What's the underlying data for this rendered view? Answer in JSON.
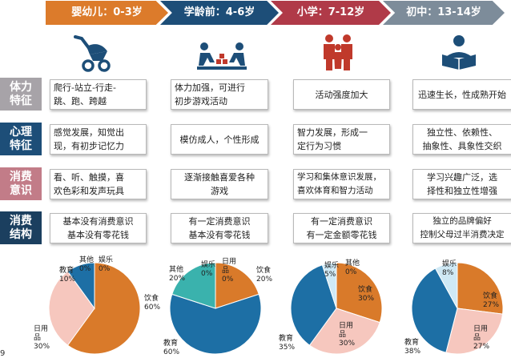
{
  "stages": [
    {
      "label": "婴幼儿：0-3岁",
      "color": "#dc7b2b",
      "icon": "stroller-icon"
    },
    {
      "label": "学龄前：4-6岁",
      "color": "#1d4e78",
      "icon": "kids-playing-blocks-icon"
    },
    {
      "label": "小学：7-12岁",
      "color": "#b03a48",
      "icon": "family-icon"
    },
    {
      "label": "初中：13-14岁",
      "color": "#7d8c9a",
      "icon": "student-reading-icon"
    }
  ],
  "rows": [
    {
      "label": "体力\n特征",
      "color": "#a7a3a8",
      "cells": [
        "爬行-站立-行走-\n跳、跑、跨越",
        "体力加强，可进行\n初步游戏活动",
        "活动强度加大",
        "迅速生长，性成熟开始"
      ]
    },
    {
      "label": "心理\n特征",
      "color": "#1d4e78",
      "cells": [
        "感觉发展，知觉出\n现，有初步记忆力",
        "模仿成人，个性形成",
        "智力发展，形成一\n定行为习惯",
        "独立性、依赖性、\n抽象性、具象性交织"
      ]
    },
    {
      "label": "消费\n意识",
      "color": "#c27c88",
      "cells": [
        "看、听、触摸，喜\n欢色彩和发声玩具",
        "逐渐接触喜爱各种\n游戏",
        "学习和集体意识发展，\n喜欢体育和智力活动",
        "学习兴趣广泛，选\n择性和独立性增强"
      ]
    },
    {
      "label": "消费\n结构",
      "color": "#1b3f5f",
      "cells": [
        "基本没有消费意识\n基本没有零花钱",
        "有一定消费意识\n基本没有零花钱",
        "有一定消费意识\n有一定金额零花钱",
        "独立的品牌偏好\n控制父母过半消费决定"
      ]
    }
  ],
  "pie_colors": {
    "饮食": "#d97a2a",
    "日用品": "#f6c7be",
    "教育": "#1d6fa5",
    "其他": "#3ab2ad",
    "娱乐": "#cfe9f5"
  },
  "chart_data": [
    {
      "type": "pie",
      "labels": [
        "饮食",
        "日用品",
        "教育",
        "其他",
        "娱乐"
      ],
      "values": [
        60,
        30,
        10,
        0,
        0
      ]
    },
    {
      "type": "pie",
      "labels": [
        "饮食",
        "教育",
        "其他",
        "娱乐",
        "日用品"
      ],
      "values": [
        20,
        60,
        20,
        0,
        0
      ]
    },
    {
      "type": "pie",
      "labels": [
        "饮食",
        "日用品",
        "教育",
        "娱乐",
        "其他"
      ],
      "values": [
        30,
        30,
        35,
        5,
        0
      ]
    },
    {
      "type": "pie",
      "labels": [
        "饮食",
        "日用品",
        "教育",
        "娱乐"
      ],
      "values": [
        27,
        27,
        38,
        8
      ]
    }
  ],
  "pie_labels": [
    [
      {
        "text": "其他",
        "pct": "0%"
      },
      {
        "text": "娱乐",
        "pct": "0%"
      },
      {
        "text": "教育",
        "pct": "10%"
      },
      {
        "text": "饮食",
        "pct": "60%"
      },
      {
        "text": "日用\n品",
        "pct": "30%"
      }
    ],
    [
      {
        "text": "其他",
        "pct": "20%"
      },
      {
        "text": "娱乐",
        "pct": "0%"
      },
      {
        "text": "日用\n品",
        "pct": "0%"
      },
      {
        "text": "饮食",
        "pct": "20%"
      },
      {
        "text": "教育",
        "pct": "60%"
      }
    ],
    [
      {
        "text": "娱乐",
        "pct": "5%"
      },
      {
        "text": "其他",
        "pct": "0%"
      },
      {
        "text": "饮食",
        "pct": "30%"
      },
      {
        "text": "日用\n品",
        "pct": "30%"
      },
      {
        "text": "教育",
        "pct": "35%"
      }
    ],
    [
      {
        "text": "娱乐",
        "pct": "8%"
      },
      {
        "text": "饮食",
        "pct": "27%"
      },
      {
        "text": "日用\n品",
        "pct": "27%"
      },
      {
        "text": "教育",
        "pct": "38%"
      }
    ]
  ],
  "footnote": "9"
}
